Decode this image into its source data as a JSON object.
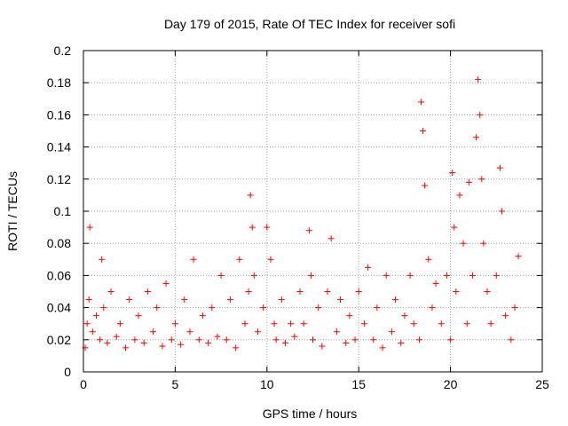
{
  "chart_data": {
    "type": "scatter",
    "title": "Day 179 of 2015, Rate Of TEC Index for receiver sofi",
    "xlabel": "GPS time / hours",
    "ylabel": "ROTI / TECUs",
    "xlim": [
      0,
      25
    ],
    "ylim": [
      0,
      0.2
    ],
    "xticks": [
      "0",
      "5",
      "10",
      "15",
      "20",
      "25"
    ],
    "yticks": [
      "0",
      "0.02",
      "0.04",
      "0.06",
      "0.08",
      "0.1",
      "0.12",
      "0.14",
      "0.16",
      "0.18",
      "0.2"
    ],
    "grid": true,
    "marker": "plus",
    "series_color": "#ff0000",
    "series": [
      {
        "x": [
          0.1,
          0.2,
          0.3,
          0.35,
          0.5,
          0.7,
          0.9,
          1.0,
          1.1,
          1.3,
          1.5,
          1.8,
          2.0,
          2.3,
          2.5,
          2.8,
          3.0,
          3.3,
          3.5,
          3.8,
          4.0,
          4.3,
          4.5,
          4.8,
          5.0,
          5.3,
          5.5,
          5.8,
          6.0,
          6.3,
          6.5,
          6.8,
          7.0,
          7.3,
          7.5,
          7.8,
          8.0,
          8.3,
          8.5,
          8.8,
          9.0,
          9.1,
          9.2,
          9.3,
          9.5,
          9.8,
          10.0,
          10.2,
          10.4,
          10.5,
          10.8,
          11.0,
          11.3,
          11.5,
          11.8,
          12.0,
          12.3,
          12.4,
          12.5,
          12.8,
          13.0,
          13.3,
          13.5,
          13.8,
          14.0,
          14.3,
          14.5,
          14.8,
          15.0,
          15.3,
          15.5,
          15.8,
          16.0,
          16.3,
          16.5,
          16.8,
          17.0,
          17.3,
          17.5,
          17.8,
          18.0,
          18.3,
          18.4,
          18.5,
          18.6,
          18.8,
          19.0,
          19.2,
          19.5,
          19.8,
          20.0,
          20.1,
          20.2,
          20.3,
          20.5,
          20.7,
          20.9,
          21.0,
          21.2,
          21.4,
          21.5,
          21.6,
          21.7,
          21.8,
          22.0,
          22.2,
          22.5,
          22.7,
          22.8,
          23.0,
          23.3,
          23.5,
          23.7
        ],
        "y": [
          0.015,
          0.03,
          0.045,
          0.09,
          0.025,
          0.035,
          0.02,
          0.07,
          0.04,
          0.018,
          0.05,
          0.022,
          0.03,
          0.015,
          0.045,
          0.02,
          0.035,
          0.018,
          0.05,
          0.025,
          0.04,
          0.016,
          0.055,
          0.02,
          0.03,
          0.017,
          0.045,
          0.025,
          0.07,
          0.02,
          0.035,
          0.018,
          0.04,
          0.022,
          0.06,
          0.02,
          0.045,
          0.015,
          0.07,
          0.03,
          0.05,
          0.11,
          0.09,
          0.06,
          0.025,
          0.04,
          0.09,
          0.07,
          0.03,
          0.02,
          0.045,
          0.018,
          0.03,
          0.022,
          0.05,
          0.03,
          0.088,
          0.06,
          0.02,
          0.04,
          0.016,
          0.05,
          0.083,
          0.025,
          0.045,
          0.018,
          0.035,
          0.02,
          0.05,
          0.03,
          0.065,
          0.02,
          0.04,
          0.015,
          0.06,
          0.025,
          0.045,
          0.018,
          0.035,
          0.06,
          0.03,
          0.02,
          0.168,
          0.15,
          0.116,
          0.07,
          0.04,
          0.055,
          0.03,
          0.06,
          0.02,
          0.124,
          0.09,
          0.05,
          0.11,
          0.08,
          0.03,
          0.118,
          0.06,
          0.146,
          0.182,
          0.16,
          0.12,
          0.08,
          0.05,
          0.03,
          0.06,
          0.127,
          0.1,
          0.035,
          0.02,
          0.04,
          0.072
        ]
      }
    ]
  }
}
